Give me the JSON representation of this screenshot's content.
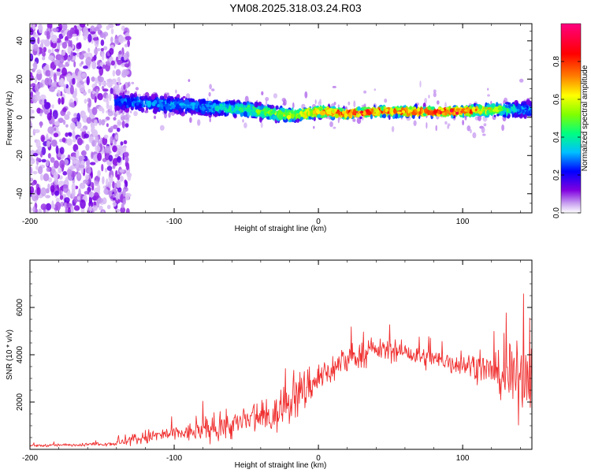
{
  "title": "YM08.2025.318.03.24.R03",
  "colors": {
    "snr_line": "#f03030",
    "axis": "#000000",
    "background": "#ffffff"
  },
  "chart_data": [
    {
      "type": "heatmap",
      "title": "",
      "xlabel": "Height of straight line (km)",
      "ylabel": "Frequency (Hz)",
      "xlim": [
        -200,
        148
      ],
      "ylim": [
        -50,
        49
      ],
      "xticks": [
        -200,
        -100,
        0,
        100
      ],
      "yticks": [
        -40,
        -20,
        0,
        20,
        40
      ],
      "colorbar": {
        "label": "Normalized spectral amplitude",
        "range": [
          0,
          1
        ],
        "ticks": [
          "0.0",
          "0.2",
          "0.4",
          "0.6",
          "0.8"
        ],
        "colormap": [
          "#ffffff",
          "#c8a0f0",
          "#8000e0",
          "#0000ff",
          "#00c0ff",
          "#00ff80",
          "#80ff00",
          "#ffff00",
          "#ff8000",
          "#ff0000",
          "#ff0080"
        ]
      },
      "ridge": {
        "height_km": [
          -150,
          -130,
          -110,
          -90,
          -70,
          -50,
          -30,
          -20,
          -10,
          0,
          20,
          40,
          60,
          80,
          100,
          120,
          140
        ],
        "frequency_hz": [
          8,
          8,
          7,
          6,
          5,
          4,
          2,
          1,
          2,
          3,
          2,
          3,
          3,
          3,
          3,
          4,
          4
        ],
        "amplitude": [
          0.2,
          0.3,
          0.3,
          0.3,
          0.35,
          0.45,
          0.55,
          0.6,
          0.65,
          0.7,
          0.85,
          0.8,
          0.8,
          0.85,
          0.85,
          0.6,
          0.3
        ]
      },
      "noise_region_km": [
        -200,
        -137
      ]
    },
    {
      "type": "line",
      "title": "",
      "xlabel": "Height of straight line (km)",
      "ylabel": "SNR (10 * v/v)",
      "xlim": [
        -200,
        148
      ],
      "ylim": [
        0,
        8000
      ],
      "xticks": [
        -200,
        -100,
        0,
        100
      ],
      "yticks": [
        2000,
        4000,
        6000
      ],
      "series": [
        {
          "name": "SNR",
          "x": [
            -200,
            -180,
            -160,
            -140,
            -130,
            -120,
            -110,
            -100,
            -90,
            -80,
            -70,
            -60,
            -50,
            -40,
            -30,
            -25,
            -20,
            -15,
            -10,
            -5,
            0,
            10,
            20,
            30,
            40,
            50,
            60,
            70,
            80,
            90,
            100,
            110,
            120,
            130,
            135,
            140,
            148
          ],
          "y": [
            150,
            180,
            200,
            250,
            400,
            500,
            600,
            650,
            700,
            800,
            900,
            1000,
            1200,
            1300,
            1400,
            1800,
            2000,
            2200,
            2500,
            2800,
            3000,
            3400,
            3800,
            4000,
            4200,
            4200,
            4100,
            3900,
            3800,
            3700,
            3600,
            3500,
            3300,
            3000,
            2800,
            3200,
            3500
          ],
          "noise_amplitude": [
            80,
            100,
            100,
            150,
            400,
            500,
            500,
            500,
            600,
            700,
            800,
            900,
            1000,
            1100,
            1200,
            1300,
            1400,
            1500,
            1500,
            1400,
            1200,
            1000,
            900,
            800,
            700,
            700,
            700,
            700,
            700,
            800,
            800,
            900,
            1100,
            1600,
            2200,
            2500,
            2500
          ]
        }
      ]
    }
  ]
}
